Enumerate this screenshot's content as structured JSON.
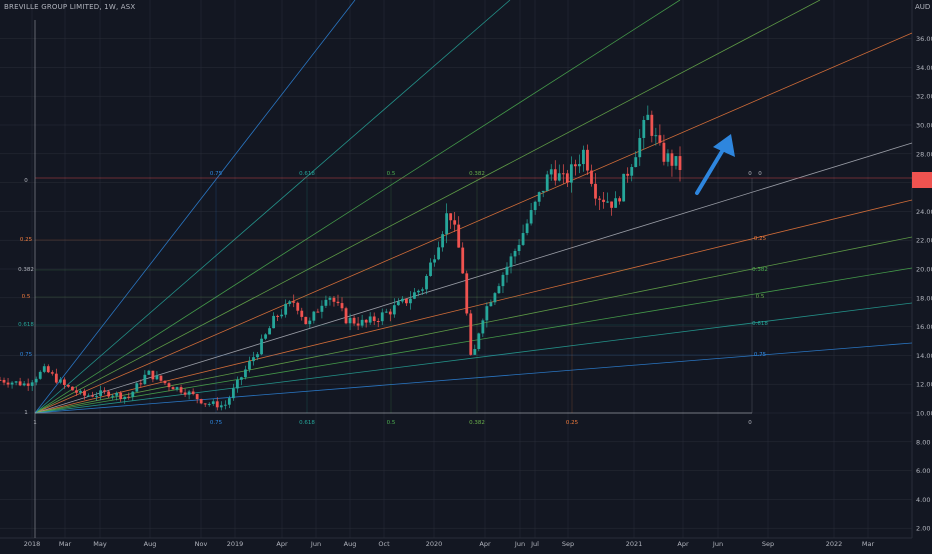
{
  "header": {
    "title": "BREVILLE GROUP LIMITED, 1W, ASX"
  },
  "price_axis": {
    "unit": "AUD"
  },
  "colors": {
    "background": "#131722",
    "up": "#26a69a",
    "down": "#ef5350",
    "arrow": "#2e86de",
    "grid": "#2a2e39",
    "fan": [
      "#ef5350",
      "#ef7a3c",
      "#b2b5be",
      "#ef7a3c",
      "#4caf50",
      "#6ab04c",
      "#26a69a",
      "#2e86de",
      "#5aa0dc"
    ]
  },
  "chart_data": {
    "type": "candlestick",
    "title": "BREVILLE GROUP LIMITED, 1W, ASX",
    "ylabel": "AUD",
    "ylim": [
      2.0,
      37.0
    ],
    "y_ticks": [
      "2.00",
      "4.00",
      "6.00",
      "8.00",
      "10.00",
      "12.00",
      "14.00",
      "16.00",
      "18.00",
      "20.00",
      "22.00",
      "24.00",
      "26.00",
      "28.00",
      "30.00",
      "32.00",
      "34.00",
      "36.00"
    ],
    "x_ticks": [
      "2018",
      "Mar",
      "May",
      "Aug",
      "Nov",
      "2019",
      "Apr",
      "Jun",
      "Aug",
      "Oct",
      "2020",
      "Apr",
      "Jun",
      "Jul",
      "Sep",
      "2021",
      "Apr",
      "Jun",
      "Sep",
      "2022",
      "Mar"
    ],
    "series_path": [
      {
        "t": 0,
        "p": 12.3
      },
      {
        "t": 0.04,
        "p": 12.0
      },
      {
        "t": 0.07,
        "p": 13.0
      },
      {
        "t": 0.1,
        "p": 11.9
      },
      {
        "t": 0.13,
        "p": 11.2
      },
      {
        "t": 0.17,
        "p": 11.4
      },
      {
        "t": 0.2,
        "p": 11.1
      },
      {
        "t": 0.23,
        "p": 12.8
      },
      {
        "t": 0.26,
        "p": 12.0
      },
      {
        "t": 0.29,
        "p": 11.5
      },
      {
        "t": 0.32,
        "p": 10.7
      },
      {
        "t": 0.35,
        "p": 10.5
      },
      {
        "t": 0.38,
        "p": 12.8
      },
      {
        "t": 0.41,
        "p": 15.0
      },
      {
        "t": 0.43,
        "p": 16.7
      },
      {
        "t": 0.46,
        "p": 17.8
      },
      {
        "t": 0.48,
        "p": 16.0
      },
      {
        "t": 0.51,
        "p": 18.4
      },
      {
        "t": 0.54,
        "p": 16.5
      },
      {
        "t": 0.57,
        "p": 16.2
      },
      {
        "t": 0.6,
        "p": 16.9
      },
      {
        "t": 0.63,
        "p": 17.7
      },
      {
        "t": 0.66,
        "p": 18.8
      },
      {
        "t": 0.7,
        "p": 24.2
      },
      {
        "t": 0.72,
        "p": 20.5
      },
      {
        "t": 0.735,
        "p": 13.2
      },
      {
        "t": 0.75,
        "p": 16.5
      },
      {
        "t": 0.77,
        "p": 18.5
      },
      {
        "t": 0.8,
        "p": 21.0
      },
      {
        "t": 0.83,
        "p": 24.0
      },
      {
        "t": 0.86,
        "p": 27.0
      },
      {
        "t": 0.88,
        "p": 26.0
      },
      {
        "t": 0.91,
        "p": 28.2
      },
      {
        "t": 0.93,
        "p": 25.2
      },
      {
        "t": 0.96,
        "p": 24.5
      },
      {
        "t": 0.98,
        "p": 27.0
      },
      {
        "t": 1.01,
        "p": 30.5
      },
      {
        "t": 1.03,
        "p": 28.0
      },
      {
        "t": 1.06,
        "p": 27.1
      }
    ],
    "fan_origin_label": "1",
    "fan_levels": [
      "0",
      "0.25",
      "0.382",
      "0.5",
      "0.618",
      "0.75",
      "1"
    ],
    "top_labels": [
      "0.75",
      "0.618",
      "0.5",
      "0.382",
      "0"
    ],
    "bottom_labels": [
      "1",
      "0.75",
      "0.618",
      "0.5",
      "0.382",
      "0.25",
      "0"
    ],
    "left_labels": [
      "0",
      "0.25",
      "0.382",
      "0.5",
      "0.618",
      "0.75",
      "1"
    ],
    "right_labels": [
      "0",
      "0.25",
      "0.382",
      "0.5",
      "0.618",
      "0.75"
    ],
    "annotation": "upward arrow"
  }
}
